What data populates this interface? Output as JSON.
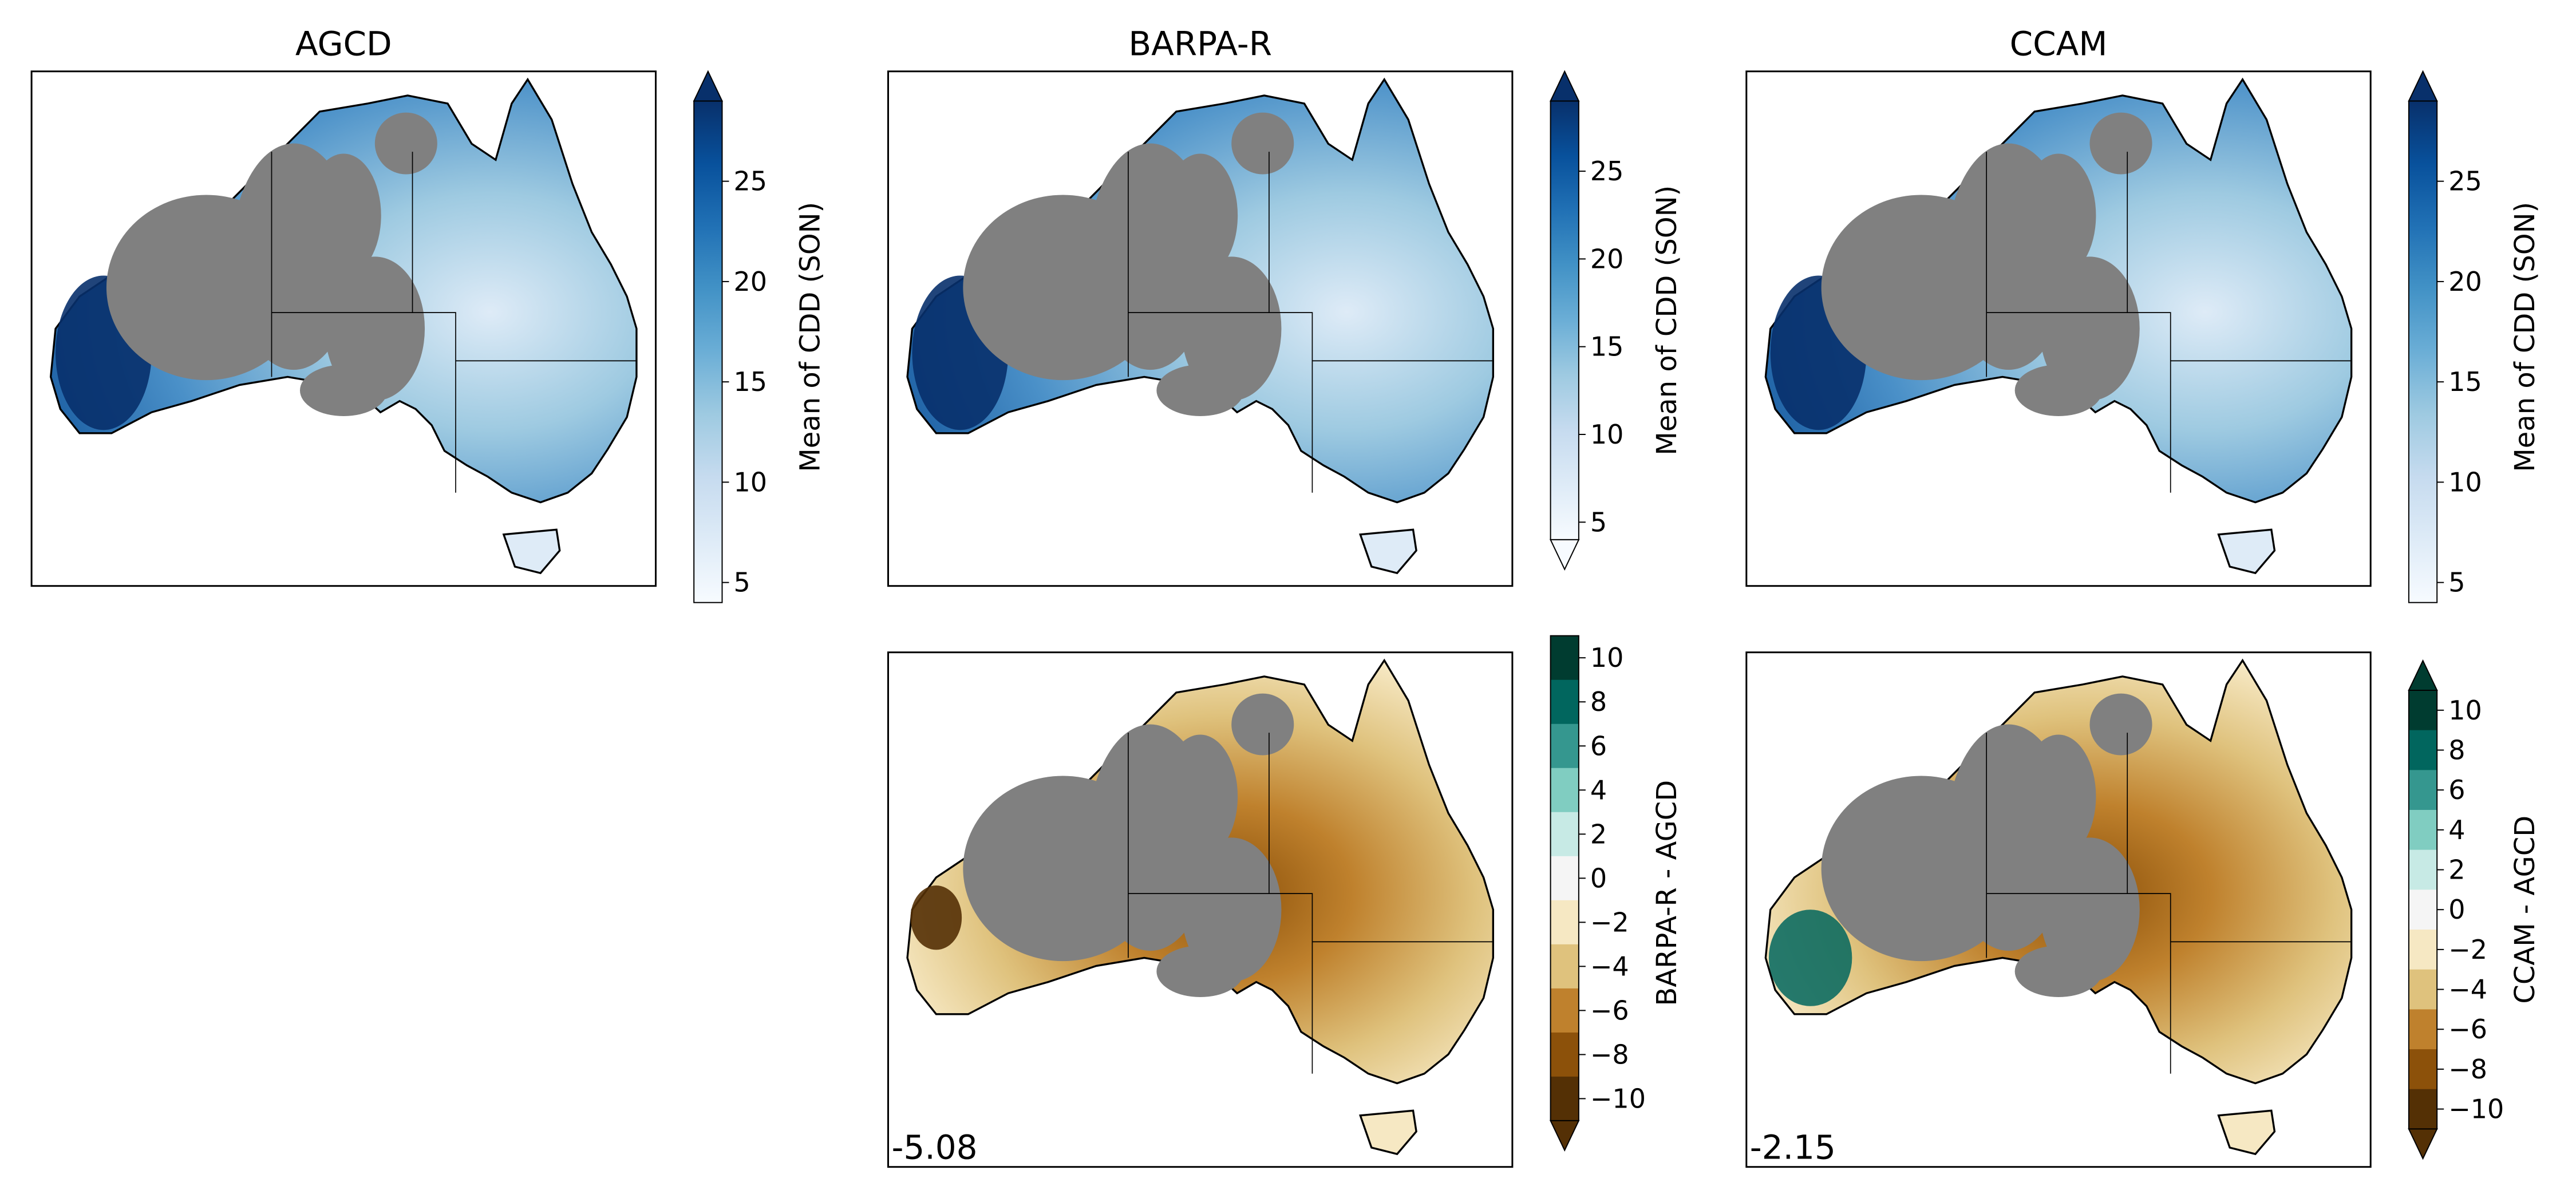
{
  "chart_data": [
    {
      "type": "heatmap",
      "title": "AGCD",
      "colorbar": {
        "label": "Mean of CDD (SON)",
        "ticks": [
          "5",
          "10",
          "15",
          "20",
          "25"
        ],
        "range": [
          4,
          29
        ],
        "extend": "max",
        "colormap": "Blues"
      },
      "region": "Australia",
      "missing_color": "#808080"
    },
    {
      "type": "heatmap",
      "title": "BARPA-R",
      "colorbar": {
        "label": "Mean of CDD (SON)",
        "ticks": [
          "5",
          "10",
          "15",
          "20",
          "25"
        ],
        "range": [
          4,
          29
        ],
        "extend": "both",
        "colormap": "Blues"
      },
      "region": "Australia",
      "missing_color": "#808080"
    },
    {
      "type": "heatmap",
      "title": "CCAM",
      "colorbar": {
        "label": "Mean of CDD (SON)",
        "ticks": [
          "5",
          "10",
          "15",
          "20",
          "25"
        ],
        "range": [
          4,
          29
        ],
        "extend": "max",
        "colormap": "Blues"
      },
      "region": "Australia",
      "missing_color": "#808080"
    },
    {
      "type": "heatmap",
      "title": "",
      "annotation": "-5.08",
      "colorbar": {
        "label": "BARPA-R - AGCD",
        "ticks": [
          "10",
          "8",
          "6",
          "4",
          "2",
          "0",
          "−2",
          "−4",
          "−6",
          "−8",
          "−10"
        ],
        "range": [
          -11,
          11
        ],
        "extend": "min",
        "colormap": "BrBG",
        "levels": [
          10,
          8,
          6,
          4,
          2,
          0,
          -2,
          -4,
          -6,
          -8,
          -10
        ]
      },
      "region": "Australia",
      "missing_color": "#808080"
    },
    {
      "type": "heatmap",
      "title": "",
      "annotation": "-2.15",
      "colorbar": {
        "label": "CCAM - AGCD",
        "ticks": [
          "10",
          "8",
          "6",
          "4",
          "2",
          "0",
          "−2",
          "−4",
          "−6",
          "−8",
          "−10"
        ],
        "range": [
          -11,
          11
        ],
        "extend": "both",
        "colormap": "BrBG",
        "levels": [
          10,
          8,
          6,
          4,
          2,
          0,
          -2,
          -4,
          -6,
          -8,
          -10
        ]
      },
      "region": "Australia",
      "missing_color": "#808080"
    }
  ],
  "colors": {
    "blues": [
      "#f7fbff",
      "#deebf7",
      "#c6dbef",
      "#9ecae1",
      "#6baed6",
      "#4292c6",
      "#2171b5",
      "#08519c",
      "#08306b"
    ],
    "brbg": [
      "#543005",
      "#8c510a",
      "#bf812d",
      "#dfc27d",
      "#f6e8c3",
      "#f5f5f5",
      "#c7eae5",
      "#80cdc1",
      "#35978f",
      "#01665e",
      "#003c30"
    ],
    "missing": "#808080",
    "frame": "#000000"
  }
}
